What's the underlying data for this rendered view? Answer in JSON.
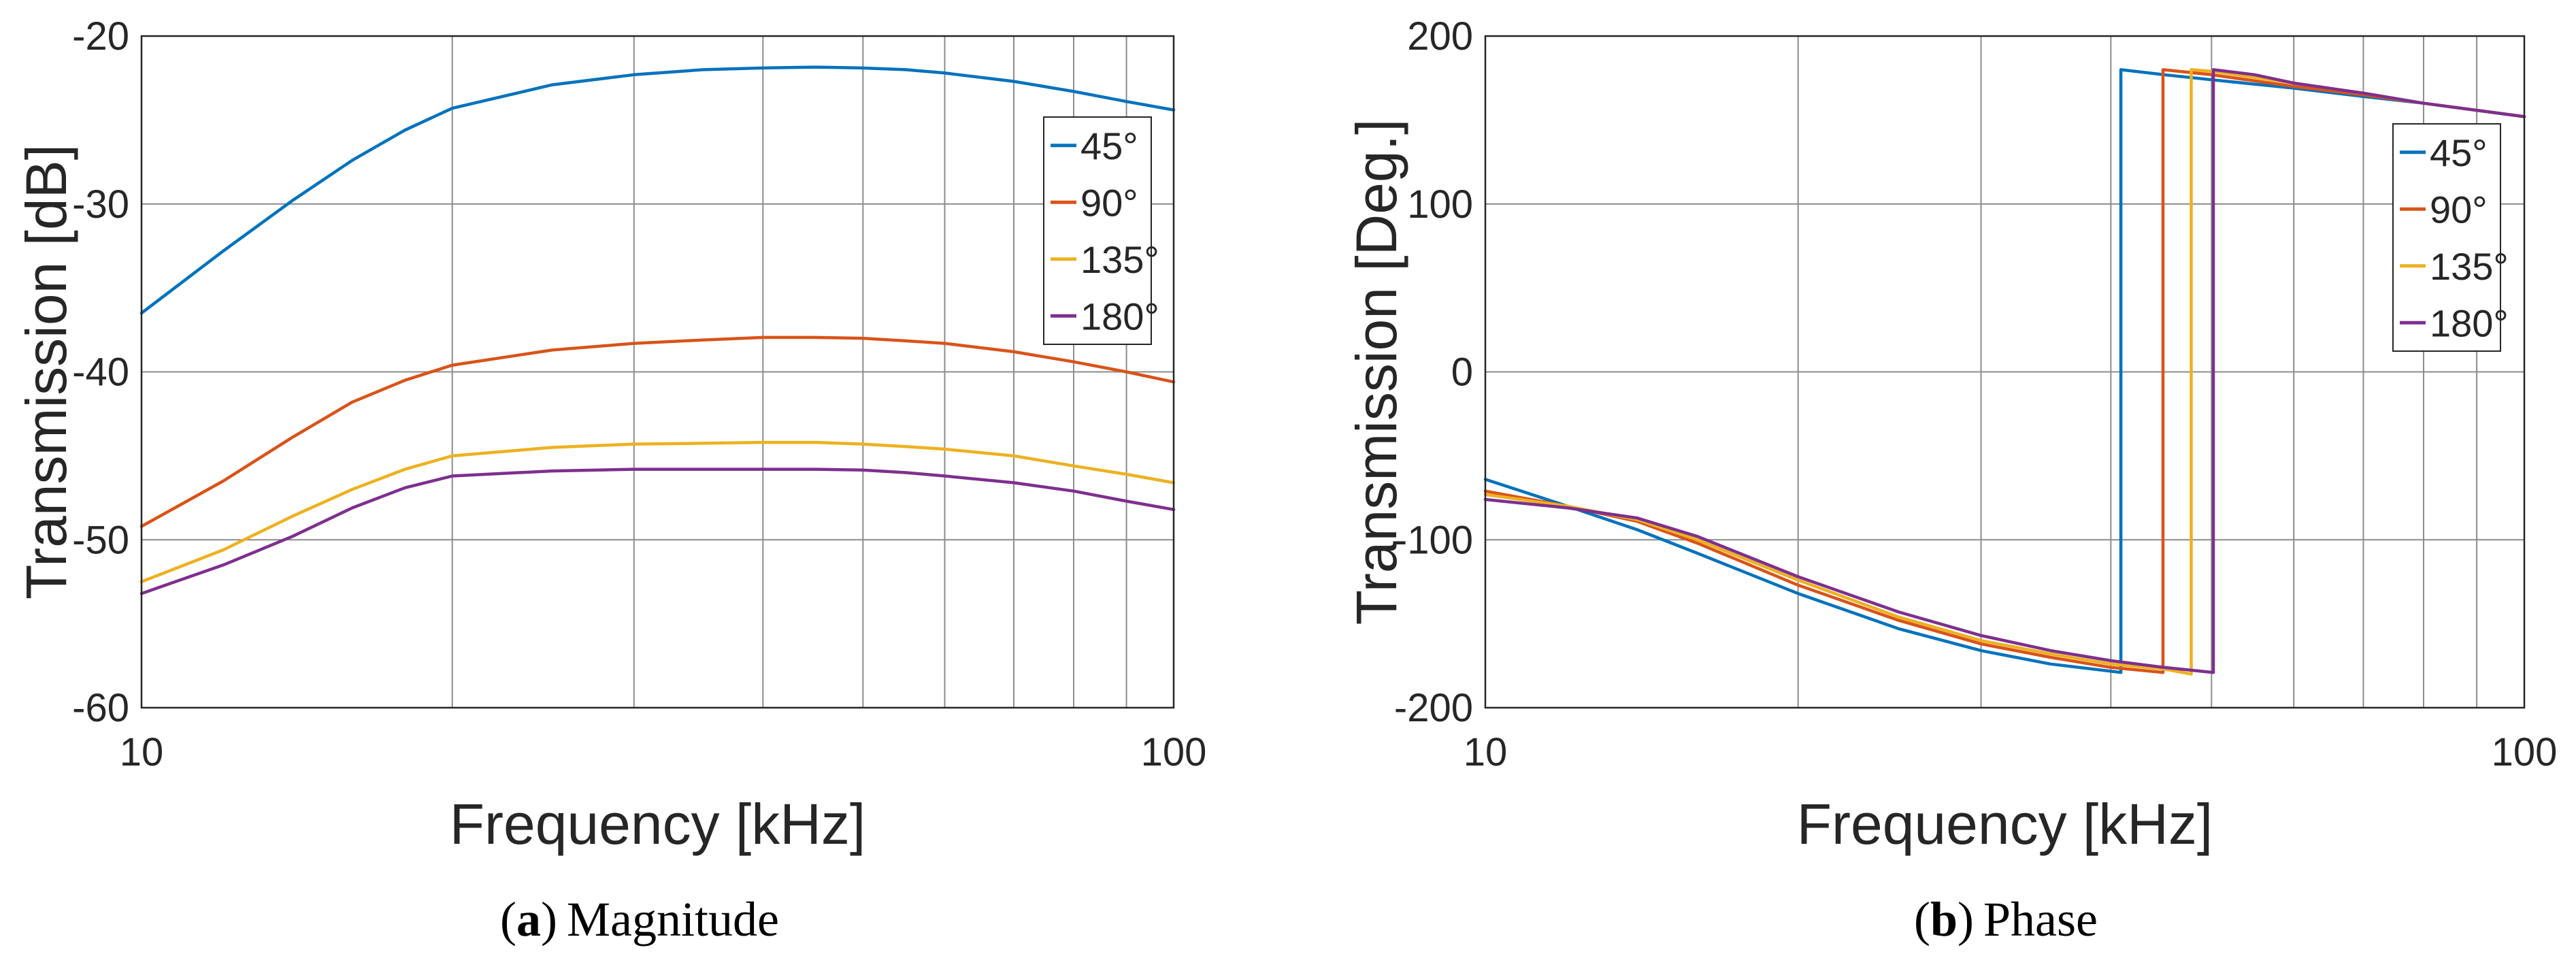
{
  "figure": {
    "captions": [
      {
        "label": "a",
        "text": "Magnitude"
      },
      {
        "label": "b",
        "text": "Phase"
      }
    ]
  },
  "chart_data": [
    {
      "type": "line",
      "title": "",
      "caption_label": "a",
      "caption_text": "Magnitude",
      "xlabel": "Frequency [kHz]",
      "ylabel": "Transmission [dB]",
      "xscale": "log",
      "xlim": [
        10,
        100
      ],
      "ylim": [
        -60,
        -20
      ],
      "xticks": [
        10,
        100
      ],
      "xtick_labels": [
        "10",
        "100"
      ],
      "yticks": [
        -60,
        -50,
        -40,
        -30,
        -20
      ],
      "ytick_labels": [
        "-60",
        "-50",
        "-40",
        "-30",
        "-20"
      ],
      "grid": true,
      "legend_position": "top-right",
      "series": [
        {
          "name": "45°",
          "color": "#0072BD",
          "x": [
            10,
            12,
            14,
            16,
            18,
            20,
            25,
            30,
            35,
            40,
            45,
            50,
            55,
            60,
            70,
            80,
            90,
            100
          ],
          "y": [
            -36.5,
            -32.8,
            -29.8,
            -27.4,
            -25.6,
            -24.3,
            -22.9,
            -22.3,
            -22.0,
            -21.9,
            -21.85,
            -21.9,
            -22.0,
            -22.2,
            -22.7,
            -23.3,
            -23.9,
            -24.4
          ]
        },
        {
          "name": "90°",
          "color": "#D95319",
          "x": [
            10,
            12,
            14,
            16,
            18,
            20,
            25,
            30,
            35,
            40,
            45,
            50,
            55,
            60,
            70,
            80,
            90,
            100
          ],
          "y": [
            -49.2,
            -46.5,
            -43.9,
            -41.8,
            -40.5,
            -39.6,
            -38.7,
            -38.3,
            -38.1,
            -37.95,
            -37.95,
            -38.0,
            -38.15,
            -38.3,
            -38.8,
            -39.4,
            -40.0,
            -40.6
          ]
        },
        {
          "name": "135°",
          "color": "#EDB120",
          "x": [
            10,
            12,
            14,
            16,
            18,
            20,
            25,
            30,
            35,
            40,
            45,
            50,
            55,
            60,
            70,
            80,
            90,
            100
          ],
          "y": [
            -52.5,
            -50.6,
            -48.6,
            -47.0,
            -45.8,
            -45.0,
            -44.5,
            -44.3,
            -44.25,
            -44.2,
            -44.2,
            -44.3,
            -44.45,
            -44.6,
            -45.0,
            -45.6,
            -46.1,
            -46.6
          ]
        },
        {
          "name": "180°",
          "color": "#7E2F8E",
          "x": [
            10,
            12,
            14,
            16,
            18,
            20,
            25,
            30,
            35,
            40,
            45,
            50,
            55,
            60,
            70,
            80,
            90,
            100
          ],
          "y": [
            -53.2,
            -51.5,
            -49.8,
            -48.1,
            -46.9,
            -46.2,
            -45.9,
            -45.8,
            -45.8,
            -45.8,
            -45.8,
            -45.85,
            -46.0,
            -46.2,
            -46.6,
            -47.1,
            -47.7,
            -48.2
          ]
        }
      ]
    },
    {
      "type": "line",
      "title": "",
      "caption_label": "b",
      "caption_text": "Phase",
      "xlabel": "Frequency [kHz]",
      "ylabel": "Transmission [Deg.]",
      "xscale": "log",
      "xlim": [
        10,
        100
      ],
      "ylim": [
        -200,
        200
      ],
      "xticks": [
        10,
        100
      ],
      "xtick_labels": [
        "10",
        "100"
      ],
      "yticks": [
        -200,
        -100,
        0,
        100,
        200
      ],
      "ytick_labels": [
        "-200",
        "-100",
        "0",
        "100",
        "200"
      ],
      "grid": true,
      "legend_position": "top-right",
      "series": [
        {
          "name": "45°",
          "color": "#0072BD",
          "x": [
            10,
            12,
            14,
            16,
            20,
            25,
            30,
            35,
            40.9,
            40.9,
            45,
            50,
            60,
            70,
            80,
            100
          ],
          "y": [
            -64,
            -80,
            -94,
            -108,
            -132,
            -153,
            -166,
            -174,
            -179,
            180,
            177,
            174,
            169,
            164,
            160,
            152
          ]
        },
        {
          "name": "90°",
          "color": "#D95319",
          "x": [
            10,
            12,
            14,
            16,
            20,
            25,
            30,
            35,
            40,
            44.9,
            44.9,
            50,
            60,
            70,
            80,
            100
          ],
          "y": [
            -71,
            -80,
            -89,
            -102,
            -127,
            -148,
            -162,
            -170,
            -176,
            -179,
            180,
            177,
            170,
            165,
            160,
            152
          ]
        },
        {
          "name": "135°",
          "color": "#EDB120",
          "x": [
            10,
            12,
            14,
            16,
            20,
            25,
            30,
            35,
            40,
            45,
            47.8,
            47.8,
            50,
            60,
            70,
            80,
            100
          ],
          "y": [
            -73,
            -80,
            -88,
            -100,
            -124,
            -146,
            -160,
            -168,
            -174,
            -177,
            -180,
            180,
            179,
            172,
            166,
            160,
            152
          ]
        },
        {
          "name": "180°",
          "color": "#7E2F8E",
          "x": [
            10,
            12,
            14,
            16,
            20,
            25,
            30,
            35,
            40,
            45,
            50.2,
            50.2,
            55,
            60,
            70,
            80,
            100
          ],
          "y": [
            -76,
            -81,
            -87,
            -98,
            -122,
            -143,
            -157,
            -166,
            -172,
            -176,
            -179,
            180,
            177,
            172,
            166,
            160,
            152
          ]
        }
      ]
    }
  ]
}
